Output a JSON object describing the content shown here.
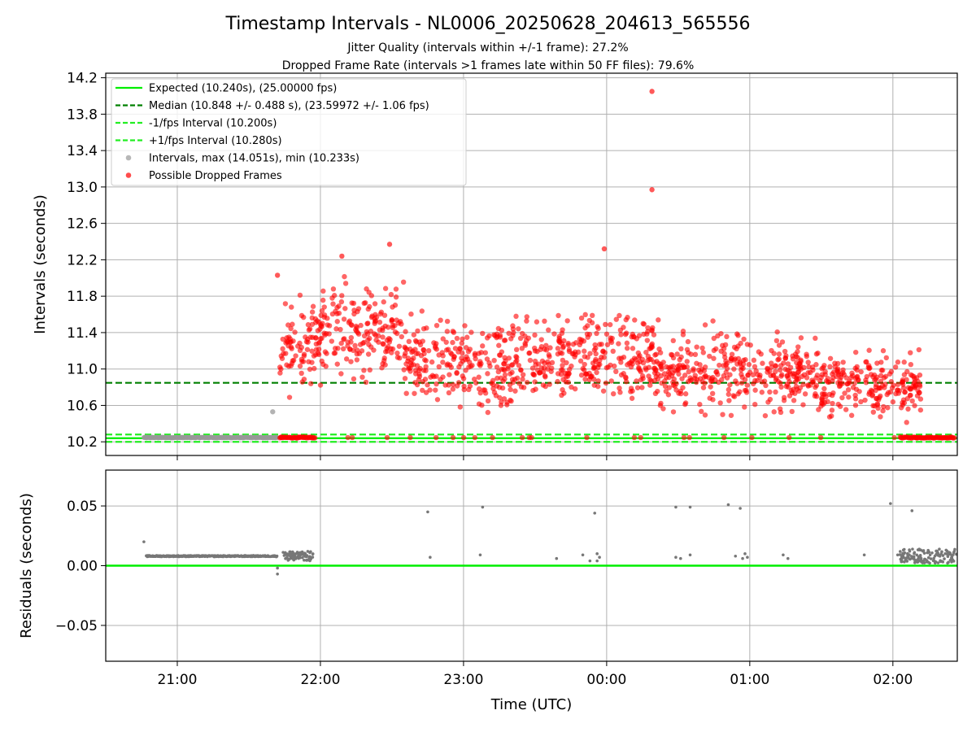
{
  "figure": {
    "title": "Timestamp Intervals - NL0006_20250628_204613_565556",
    "subtitle_1": "Jitter Quality (intervals within +/-1 frame): 27.2%",
    "subtitle_2": "Dropped Frame Rate (intervals >1 frames late within 50 FF files): 79.6%"
  },
  "colors": {
    "expected": "#00ee00",
    "median": "#008000",
    "bounds": "#22ee22",
    "intervals": "#999999",
    "dropped": "#ff0000",
    "residuals": "#777777",
    "grid": "#b0b0b0"
  },
  "chart_data": [
    {
      "type": "scatter",
      "title": "",
      "xlabel": "",
      "ylabel": "Intervals (seconds)",
      "x_ticks": [
        "21:00",
        "22:00",
        "23:00",
        "00:00",
        "01:00",
        "02:00"
      ],
      "y_ticks": [
        "10.2",
        "10.6",
        "11.0",
        "11.4",
        "11.8",
        "12.2",
        "12.6",
        "13.0",
        "13.4",
        "13.8",
        "14.2"
      ],
      "xlim": [
        "20:30",
        "02:27"
      ],
      "ylim": [
        10.05,
        14.25
      ],
      "grid": true,
      "legend_position": "top-left",
      "reference_lines": [
        {
          "name": "Expected (10.240s), (25.00000 fps)",
          "value": 10.24,
          "style": "solid",
          "color": "#00ee00"
        },
        {
          "name": "Median (10.848 +/- 0.488 s), (23.59972 +/- 1.06 fps)",
          "value": 10.848,
          "style": "dashed",
          "color": "#008000"
        },
        {
          "name": "-1/fps Interval (10.200s)",
          "value": 10.2,
          "style": "dashed",
          "color": "#22ee22"
        },
        {
          "name": "+1/fps Interval (10.280s)",
          "value": 10.28,
          "style": "dashed",
          "color": "#22ee22"
        }
      ],
      "series": [
        {
          "name": "Intervals, max (14.051s), min (10.233s)",
          "color": "#999999",
          "description": "steady band of intervals at about 10.247 s from 20:46 to 21:42, one outlier at 10.53 s near 21:40",
          "dense_band": {
            "start": "20:46",
            "end": "21:42",
            "value": 10.247
          },
          "points": [
            {
              "x": "21:40",
              "y": 10.53
            },
            {
              "x": "20:47",
              "y": 10.247
            },
            {
              "x": "21:41",
              "y": 10.247
            }
          ]
        },
        {
          "name": "Possible Dropped Frames",
          "color": "#ff0000",
          "description": "dense scatter between 21:42 and 02:12, mostly 10.3–11.9 s, highest 14.05 s at about 00:19",
          "notable_points": [
            {
              "x": "00:19",
              "y": 14.05
            },
            {
              "x": "00:19",
              "y": 12.97
            },
            {
              "x": "22:29",
              "y": 12.37
            },
            {
              "x": "22:09",
              "y": 12.24
            },
            {
              "x": "23:59",
              "y": 12.32
            },
            {
              "x": "21:42",
              "y": 12.03
            }
          ],
          "clusters": [
            {
              "start": "21:43",
              "end": "22:00",
              "y_range": [
                10.55,
                11.95
              ]
            },
            {
              "start": "22:00",
              "end": "22:35",
              "y_range": [
                10.75,
                12.1
              ]
            },
            {
              "start": "22:35",
              "end": "23:00",
              "y_range": [
                10.4,
                11.8
              ]
            },
            {
              "start": "23:00",
              "end": "23:20",
              "y_range": [
                10.3,
                11.7
              ]
            },
            {
              "start": "23:20",
              "end": "23:45",
              "y_range": [
                10.4,
                11.75
              ]
            },
            {
              "start": "23:45",
              "end": "00:20",
              "y_range": [
                10.5,
                11.8
              ]
            },
            {
              "start": "00:20",
              "end": "00:55",
              "y_range": [
                10.4,
                11.6
              ]
            },
            {
              "start": "00:55",
              "end": "01:30",
              "y_range": [
                10.4,
                11.5
              ]
            },
            {
              "start": "01:30",
              "end": "02:12",
              "y_range": [
                10.35,
                11.3
              ]
            }
          ],
          "baseline_runs": [
            {
              "start": "21:43",
              "end": "21:58",
              "y": 10.247
            },
            {
              "start": "02:03",
              "end": "02:26",
              "y": 10.247
            }
          ]
        }
      ]
    },
    {
      "type": "scatter",
      "title": "",
      "xlabel": "Time (UTC)",
      "ylabel": "Residuals (seconds)",
      "x_ticks": [
        "21:00",
        "22:00",
        "23:00",
        "00:00",
        "01:00",
        "02:00"
      ],
      "y_ticks": [
        "−0.05",
        "0.00",
        "0.05"
      ],
      "xlim": [
        "20:30",
        "02:27"
      ],
      "ylim": [
        -0.08,
        0.08
      ],
      "grid": true,
      "reference_lines": [
        {
          "value": 0.0,
          "style": "solid",
          "color": "#00ee00"
        }
      ],
      "series": [
        {
          "color": "#777777",
          "description": "residuals of timestamps; dense band near 0.008 s from 20:47 to 21:42 and a dense cluster near 02:03–02:27",
          "dense_band": {
            "start": "20:47",
            "end": "21:42",
            "value": 0.008
          },
          "points": [
            {
              "x": "20:46",
              "y": 0.02
            },
            {
              "x": "21:42",
              "y": -0.007
            },
            {
              "x": "21:42",
              "y": -0.002
            },
            {
              "x": "22:45",
              "y": 0.045
            },
            {
              "x": "22:46",
              "y": 0.007
            },
            {
              "x": "23:08",
              "y": 0.049
            },
            {
              "x": "23:07",
              "y": 0.009
            },
            {
              "x": "23:39",
              "y": 0.006
            },
            {
              "x": "23:50",
              "y": 0.009
            },
            {
              "x": "23:53",
              "y": 0.004
            },
            {
              "x": "23:55",
              "y": 0.044
            },
            {
              "x": "23:56",
              "y": 0.004
            },
            {
              "x": "23:56",
              "y": 0.01
            },
            {
              "x": "23:57",
              "y": 0.007
            },
            {
              "x": "00:29",
              "y": 0.049
            },
            {
              "x": "00:29",
              "y": 0.007
            },
            {
              "x": "00:31",
              "y": 0.006
            },
            {
              "x": "00:35",
              "y": 0.049
            },
            {
              "x": "00:35",
              "y": 0.009
            },
            {
              "x": "00:51",
              "y": 0.051
            },
            {
              "x": "00:56",
              "y": 0.048
            },
            {
              "x": "00:54",
              "y": 0.008
            },
            {
              "x": "00:57",
              "y": 0.006
            },
            {
              "x": "00:58",
              "y": 0.01
            },
            {
              "x": "00:59",
              "y": 0.007
            },
            {
              "x": "01:14",
              "y": 0.009
            },
            {
              "x": "01:16",
              "y": 0.006
            },
            {
              "x": "01:48",
              "y": 0.009
            },
            {
              "x": "01:59",
              "y": 0.052
            },
            {
              "x": "02:02",
              "y": 0.009
            },
            {
              "x": "02:08",
              "y": 0.046
            }
          ],
          "clusters": [
            {
              "start": "21:44",
              "end": "21:57",
              "y_range": [
                0.004,
                0.012
              ]
            },
            {
              "start": "02:03",
              "end": "02:27",
              "y_range": [
                0.002,
                0.014
              ]
            }
          ]
        }
      ]
    }
  ]
}
